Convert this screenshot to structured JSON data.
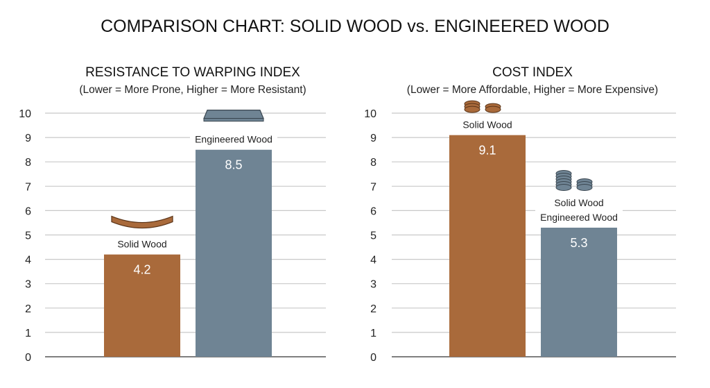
{
  "title": "COMPARISON CHART: SOLID WOOD vs. ENGINEERED WOOD",
  "colors": {
    "solid": "#a96a3b",
    "engineered": "#6f8494",
    "grid": "#c8c8c8",
    "axis": "#555555"
  },
  "chart_data": [
    {
      "type": "bar",
      "title": "RESISTANCE TO WARPING INDEX",
      "subtitle": "(Lower = More Prone, Higher = More Resistant)",
      "ylim": [
        0,
        10
      ],
      "yticks": [
        "0",
        "1",
        "2",
        "3",
        "4",
        "5",
        "6",
        "7",
        "8",
        "9",
        "10"
      ],
      "grid": true,
      "categories": [
        "Solid Wood",
        "Engineered Wood"
      ],
      "values": [
        4.2,
        8.5
      ],
      "data_labels": [
        "4.2",
        "8.5"
      ],
      "bar_labels": [
        [
          "Solid Wood"
        ],
        [
          "Engineered Wood"
        ]
      ],
      "icons": [
        "warped-plank-icon",
        "flat-plank-icon"
      ]
    },
    {
      "type": "bar",
      "title": "COST INDEX",
      "subtitle": "(Lower = More Affordable, Higher = More Expensive)",
      "ylim": [
        0,
        10
      ],
      "yticks": [
        "0",
        "1",
        "2",
        "3",
        "4",
        "5",
        "6",
        "7",
        "8",
        "9",
        "10"
      ],
      "grid": true,
      "categories": [
        "Solid Wood",
        "Engineered Wood"
      ],
      "values": [
        9.1,
        5.3
      ],
      "data_labels": [
        "9.1",
        "5.3"
      ],
      "bar_labels": [
        [
          "Solid Wood"
        ],
        [
          "Solid Wood",
          "Engineered Wood"
        ]
      ],
      "icons": [
        "coin-stack-icon",
        "coin-stack-icon"
      ]
    }
  ]
}
